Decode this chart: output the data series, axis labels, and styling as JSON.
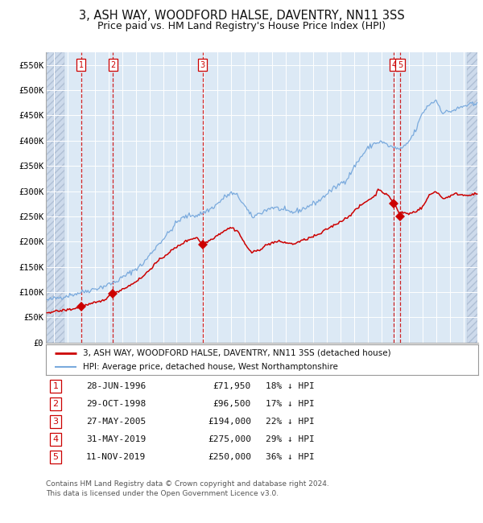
{
  "title": "3, ASH WAY, WOODFORD HALSE, DAVENTRY, NN11 3SS",
  "subtitle": "Price paid vs. HM Land Registry's House Price Index (HPI)",
  "title_fontsize": 10.5,
  "subtitle_fontsize": 9,
  "background_color": "#ffffff",
  "plot_bg_color": "#dce9f5",
  "grid_color": "#ffffff",
  "ylim": [
    0,
    575000
  ],
  "ytick_labels": [
    "£0",
    "£50K",
    "£100K",
    "£150K",
    "£200K",
    "£250K",
    "£300K",
    "£350K",
    "£400K",
    "£450K",
    "£500K",
    "£550K"
  ],
  "ytick_values": [
    0,
    50000,
    100000,
    150000,
    200000,
    250000,
    300000,
    350000,
    400000,
    450000,
    500000,
    550000
  ],
  "legend1_label": "3, ASH WAY, WOODFORD HALSE, DAVENTRY, NN11 3SS (detached house)",
  "legend2_label": "HPI: Average price, detached house, West Northamptonshire",
  "legend1_color": "#cc0000",
  "legend2_color": "#7aaadd",
  "dashed_line_color": "#cc0000",
  "sale_marker_color": "#cc0000",
  "sale_dates_num": [
    1996.495,
    1998.828,
    2005.403,
    2019.414,
    2019.86
  ],
  "sale_prices": [
    71950,
    96500,
    194000,
    275000,
    250000
  ],
  "hatch_left_end": 1995.3,
  "hatch_right_start": 2024.75,
  "xlim_left": 1993.92,
  "xlim_right": 2025.58,
  "table_rows": [
    {
      "num": "1",
      "date": "28-JUN-1996",
      "price": "£71,950",
      "hpi": "18% ↓ HPI"
    },
    {
      "num": "2",
      "date": "29-OCT-1998",
      "price": "£96,500",
      "hpi": "17% ↓ HPI"
    },
    {
      "num": "3",
      "date": "27-MAY-2005",
      "price": "£194,000",
      "hpi": "22% ↓ HPI"
    },
    {
      "num": "4",
      "date": "31-MAY-2019",
      "price": "£275,000",
      "hpi": "29% ↓ HPI"
    },
    {
      "num": "5",
      "date": "11-NOV-2019",
      "price": "£250,000",
      "hpi": "36% ↓ HPI"
    }
  ],
  "footer": "Contains HM Land Registry data © Crown copyright and database right 2024.\nThis data is licensed under the Open Government Licence v3.0."
}
